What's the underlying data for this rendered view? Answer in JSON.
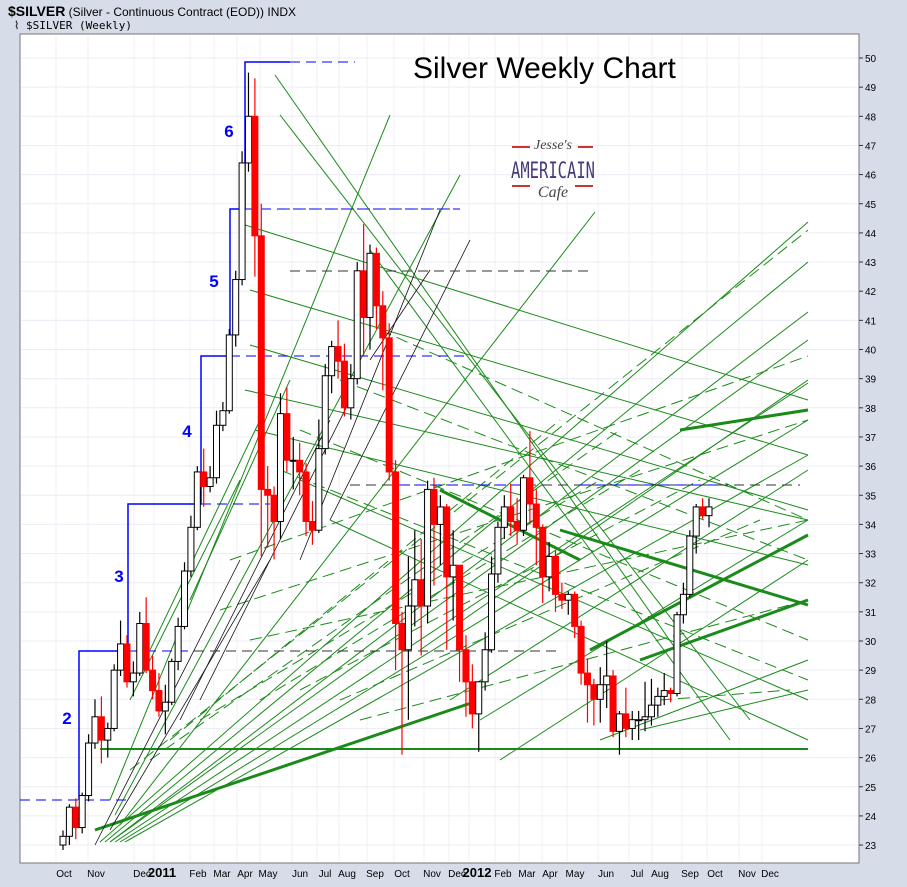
{
  "header": {
    "symbol": "$SILVER",
    "description": "(Silver - Continuous Contract (EOD))",
    "exchange": "INDX",
    "legend_icon": "price-series-icon",
    "legend": "$SILVER (Weekly)"
  },
  "logo": {
    "line1": "Jesse's",
    "line2": "AMERICAIN",
    "line3": "Cafe"
  },
  "colors": {
    "up_candle": "#ffffff",
    "down_candle": "#ff0000",
    "fan_lines": "#1a8a1a",
    "wave_steps": "#0000ff",
    "background": "#d6dde9"
  },
  "chart_data": {
    "type": "candlestick",
    "title": "Silver Weekly Chart",
    "periodicity": "weekly",
    "ylim": [
      23,
      50
    ],
    "y_ticks": [
      "23",
      "24",
      "25",
      "26",
      "27",
      "28",
      "29",
      "30",
      "31",
      "32",
      "33",
      "34",
      "35",
      "36",
      "37",
      "38",
      "39",
      "40",
      "41",
      "42",
      "43",
      "44",
      "45",
      "46",
      "47",
      "48",
      "49",
      "50"
    ],
    "x_ticks": [
      "Oct",
      "Nov",
      "Dec",
      "2011",
      "Feb",
      "Mar",
      "Apr",
      "May",
      "Jun",
      "Jul",
      "Aug",
      "Sep",
      "Oct",
      "Nov",
      "Dec",
      "2012",
      "Feb",
      "Mar",
      "Apr",
      "May",
      "Jun",
      "Jul",
      "Aug",
      "Sep",
      "Oct",
      "Nov",
      "Dec"
    ],
    "grid": true,
    "wave_labels": [
      "2",
      "3",
      "4",
      "5",
      "6"
    ],
    "ohlc": [
      [
        23.0,
        23.5,
        22.7,
        23.3
      ],
      [
        23.3,
        24.4,
        23.0,
        24.3
      ],
      [
        24.3,
        24.6,
        23.2,
        23.6
      ],
      [
        23.6,
        24.8,
        23.4,
        24.7
      ],
      [
        24.7,
        26.8,
        24.5,
        26.5
      ],
      [
        26.5,
        28.0,
        26.3,
        27.4
      ],
      [
        27.4,
        28.1,
        25.8,
        26.6
      ],
      [
        26.6,
        27.2,
        26.0,
        27.0
      ],
      [
        27.0,
        29.2,
        26.9,
        29.0
      ],
      [
        29.0,
        30.7,
        28.8,
        29.9
      ],
      [
        29.9,
        30.2,
        28.4,
        28.6
      ],
      [
        28.6,
        29.3,
        28.1,
        28.9
      ],
      [
        28.9,
        31.0,
        28.8,
        30.6
      ],
      [
        30.6,
        31.5,
        28.9,
        29.0
      ],
      [
        29.0,
        29.5,
        28.0,
        28.3
      ],
      [
        28.3,
        28.9,
        27.4,
        27.6
      ],
      [
        27.6,
        28.5,
        26.8,
        27.9
      ],
      [
        27.9,
        29.4,
        27.8,
        29.3
      ],
      [
        29.3,
        30.8,
        29.0,
        30.5
      ],
      [
        30.5,
        32.7,
        30.4,
        32.4
      ],
      [
        32.4,
        34.3,
        32.2,
        33.9
      ],
      [
        33.9,
        36.0,
        33.8,
        35.8
      ],
      [
        35.8,
        36.6,
        34.6,
        35.3
      ],
      [
        35.3,
        36.0,
        35.1,
        35.6
      ],
      [
        35.6,
        37.9,
        35.4,
        37.4
      ],
      [
        37.4,
        38.2,
        37.2,
        37.9
      ],
      [
        37.9,
        40.7,
        37.8,
        40.5
      ],
      [
        40.5,
        42.7,
        40.1,
        42.4
      ],
      [
        42.4,
        46.8,
        42.2,
        46.4
      ],
      [
        46.4,
        49.5,
        46.1,
        48.0
      ],
      [
        48.0,
        49.3,
        42.5,
        43.9
      ],
      [
        43.9,
        45.0,
        32.9,
        35.2
      ],
      [
        35.2,
        36.0,
        33.2,
        35.0
      ],
      [
        35.0,
        35.3,
        32.8,
        34.1
      ],
      [
        34.1,
        38.5,
        33.5,
        37.8
      ],
      [
        37.8,
        38.7,
        35.8,
        36.2
      ],
      [
        36.2,
        37.0,
        35.2,
        36.2
      ],
      [
        36.2,
        36.8,
        35.0,
        35.8
      ],
      [
        35.8,
        36.1,
        33.6,
        34.1
      ],
      [
        34.1,
        34.8,
        33.3,
        33.8
      ],
      [
        33.8,
        37.6,
        33.7,
        36.6
      ],
      [
        36.6,
        39.5,
        36.4,
        39.1
      ],
      [
        39.1,
        40.3,
        38.5,
        40.1
      ],
      [
        40.1,
        41.0,
        39.0,
        39.6
      ],
      [
        39.6,
        40.2,
        37.7,
        38.0
      ],
      [
        38.0,
        39.5,
        37.6,
        39.0
      ],
      [
        39.0,
        43.0,
        38.8,
        42.7
      ],
      [
        42.7,
        44.3,
        39.8,
        41.1
      ],
      [
        41.1,
        43.6,
        40.0,
        43.3
      ],
      [
        43.3,
        43.5,
        40.7,
        41.5
      ],
      [
        41.5,
        42.0,
        38.6,
        40.4
      ],
      [
        40.4,
        40.9,
        35.5,
        35.8
      ],
      [
        35.8,
        36.2,
        29.0,
        30.6
      ],
      [
        30.6,
        31.0,
        26.1,
        29.7
      ],
      [
        29.7,
        32.9,
        27.3,
        31.2
      ],
      [
        31.2,
        33.8,
        30.5,
        32.1
      ],
      [
        32.1,
        33.5,
        29.5,
        31.2
      ],
      [
        31.2,
        35.5,
        30.6,
        35.2
      ],
      [
        35.2,
        35.6,
        31.9,
        34.0
      ],
      [
        34.0,
        35.0,
        32.6,
        34.6
      ],
      [
        34.6,
        34.7,
        29.7,
        32.2
      ],
      [
        32.2,
        33.8,
        30.7,
        32.6
      ],
      [
        32.6,
        32.6,
        28.6,
        29.7
      ],
      [
        29.7,
        30.2,
        27.4,
        28.6
      ],
      [
        28.6,
        29.2,
        27.0,
        27.5
      ],
      [
        27.5,
        28.6,
        26.2,
        28.6
      ],
      [
        28.6,
        30.3,
        28.3,
        29.7
      ],
      [
        29.7,
        32.9,
        29.6,
        32.3
      ],
      [
        32.3,
        34.1,
        32.0,
        33.9
      ],
      [
        33.9,
        35.0,
        33.5,
        34.6
      ],
      [
        34.6,
        35.4,
        33.6,
        34.1
      ],
      [
        34.1,
        34.9,
        33.3,
        33.8
      ],
      [
        33.8,
        35.7,
        33.6,
        35.6
      ],
      [
        35.6,
        37.2,
        34.0,
        34.7
      ],
      [
        34.7,
        35.2,
        32.6,
        33.9
      ],
      [
        33.9,
        34.0,
        31.3,
        32.2
      ],
      [
        32.2,
        33.4,
        31.7,
        32.9
      ],
      [
        32.9,
        33.1,
        31.0,
        31.6
      ],
      [
        31.6,
        32.0,
        31.1,
        31.4
      ],
      [
        31.4,
        31.7,
        30.9,
        31.6
      ],
      [
        31.6,
        31.7,
        30.1,
        30.5
      ],
      [
        30.5,
        30.7,
        28.5,
        28.9
      ],
      [
        28.9,
        29.4,
        27.2,
        28.5
      ],
      [
        28.5,
        28.7,
        27.1,
        28.0
      ],
      [
        28.0,
        29.1,
        27.2,
        28.5
      ],
      [
        28.5,
        30.0,
        27.7,
        28.8
      ],
      [
        28.8,
        29.0,
        26.7,
        26.9
      ],
      [
        26.9,
        27.6,
        26.1,
        27.5
      ],
      [
        27.5,
        28.4,
        26.7,
        27.0
      ],
      [
        27.0,
        27.6,
        26.6,
        27.3
      ],
      [
        27.3,
        27.6,
        26.6,
        27.3
      ],
      [
        27.3,
        28.6,
        26.9,
        27.4
      ],
      [
        27.4,
        28.7,
        27.1,
        27.8
      ],
      [
        27.8,
        28.4,
        27.4,
        28.1
      ],
      [
        28.1,
        28.9,
        27.8,
        28.3
      ],
      [
        28.3,
        28.4,
        27.9,
        28.2
      ],
      [
        28.2,
        31.0,
        28.1,
        30.9
      ],
      [
        30.9,
        32.0,
        30.6,
        31.6
      ],
      [
        31.6,
        33.8,
        31.5,
        33.6
      ],
      [
        33.6,
        34.7,
        33.0,
        34.6
      ],
      [
        34.6,
        34.9,
        34.2,
        34.3
      ],
      [
        34.3,
        34.9,
        33.9,
        34.6
      ]
    ]
  }
}
